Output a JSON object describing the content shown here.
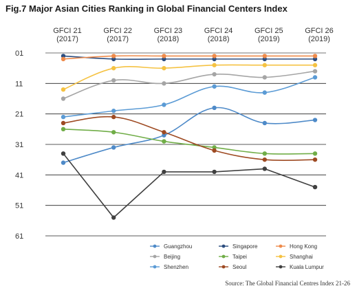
{
  "source": "Source: The Global Financial Centres Index 21-26",
  "chart_data": {
    "type": "line",
    "title": "Fig.7 Major Asian Cities Ranking in Global Financial Centers Index",
    "categories": [
      [
        "GFCI 21",
        "(2017)"
      ],
      [
        "GFCI 22",
        "(2017)"
      ],
      [
        "GFCI 23",
        "(2018)"
      ],
      [
        "GFCI 24",
        "(2018)"
      ],
      [
        "GFCI 25",
        "(2019)"
      ],
      [
        "GFCI 26",
        "(2019)"
      ]
    ],
    "y_ticks": [
      "01",
      "11",
      "21",
      "31",
      "41",
      "51",
      "61"
    ],
    "ylim": [
      1,
      61
    ],
    "y_inverted": true,
    "grid": true,
    "legend_position": "bottom-right",
    "series": [
      {
        "name": "Guangzhou",
        "color": "#4e8ac8",
        "values": [
          37,
          32,
          28,
          19,
          24,
          23
        ]
      },
      {
        "name": "Singapore",
        "color": "#2b4c7e",
        "values": [
          2,
          3,
          3,
          3,
          3,
          3
        ]
      },
      {
        "name": "Hong Kong",
        "color": "#ee8a4a",
        "values": [
          3,
          2,
          2,
          2,
          2,
          2
        ]
      },
      {
        "name": "Beijing",
        "color": "#a5a5a5",
        "values": [
          16,
          10,
          11,
          8,
          9,
          7
        ]
      },
      {
        "name": "Taipei",
        "color": "#70ad47",
        "values": [
          26,
          27,
          30,
          32,
          34,
          34
        ]
      },
      {
        "name": "Shanghai",
        "color": "#f5c242",
        "values": [
          13,
          6,
          6,
          5,
          5,
          5
        ]
      },
      {
        "name": "Shenzhen",
        "color": "#5b9bd5",
        "values": [
          22,
          20,
          18,
          12,
          14,
          9
        ]
      },
      {
        "name": "Seoul",
        "color": "#9e4a22",
        "values": [
          24,
          22,
          27,
          33,
          36,
          36
        ]
      },
      {
        "name": "Kuala Lumpur",
        "color": "#404040",
        "values": [
          34,
          55,
          40,
          40,
          39,
          45
        ]
      }
    ]
  }
}
